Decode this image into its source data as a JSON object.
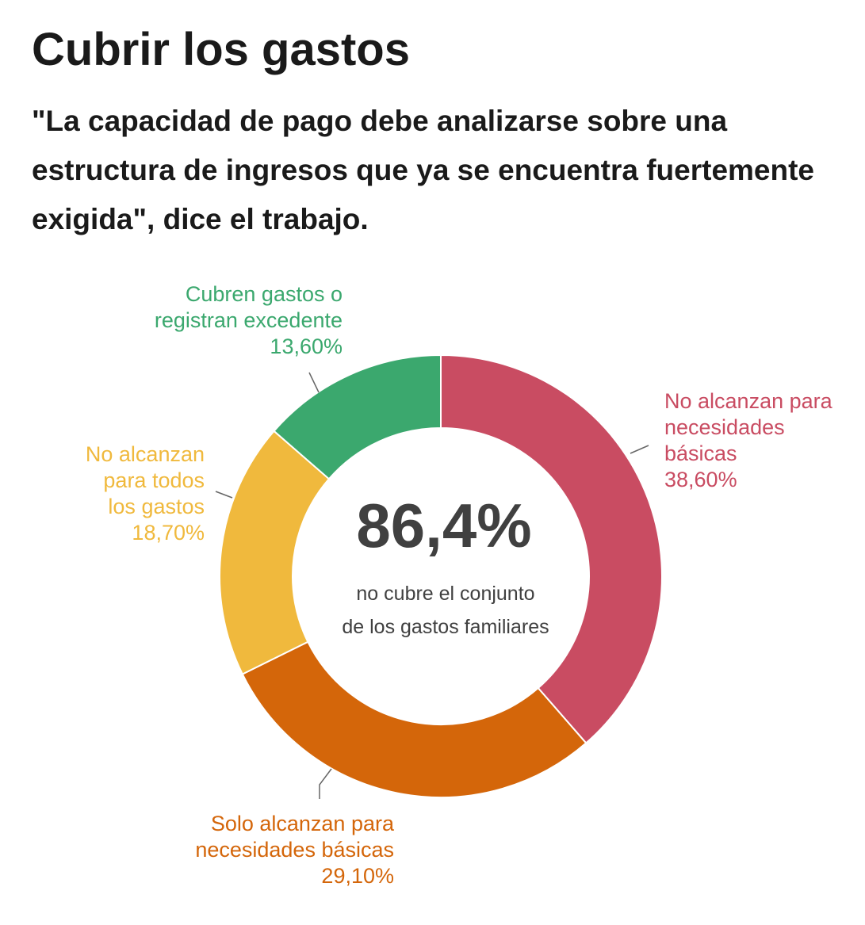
{
  "title": "Cubrir los gastos",
  "subtitle": "\"La capacidad de pago debe analizarse sobre una estructura de ingresos que ya se encuentra fuertemente exigida\", dice el trabajo.",
  "chart_data": {
    "type": "pie",
    "variant": "donut",
    "center_value": "86,4%",
    "center_text": [
      "no cubre el conjunto",
      "de los gastos familiares"
    ],
    "slices": [
      {
        "name": "No alcanzan para necesidades básicas",
        "value": 38.6,
        "label_lines": [
          "No alcanzan para",
          "necesidades",
          "básicas"
        ],
        "value_label": "38,60%",
        "color": "#c94c62"
      },
      {
        "name": "Solo alcanzan para necesidades básicas",
        "value": 29.1,
        "label_lines": [
          "Solo alcanzan para",
          "necesidades básicas"
        ],
        "value_label": "29,10%",
        "color": "#d4660a"
      },
      {
        "name": "No alcanzan para todos los gastos",
        "value": 18.7,
        "label_lines": [
          "No alcanzan",
          "para todos",
          "los gastos"
        ],
        "value_label": "18,70%",
        "color": "#f0b93d"
      },
      {
        "name": "Cubren gastos o registran excedente",
        "value": 13.6,
        "label_lines": [
          "Cubren gastos o",
          "registran excedente"
        ],
        "value_label": "13,60%",
        "color": "#3ba86e"
      }
    ]
  }
}
